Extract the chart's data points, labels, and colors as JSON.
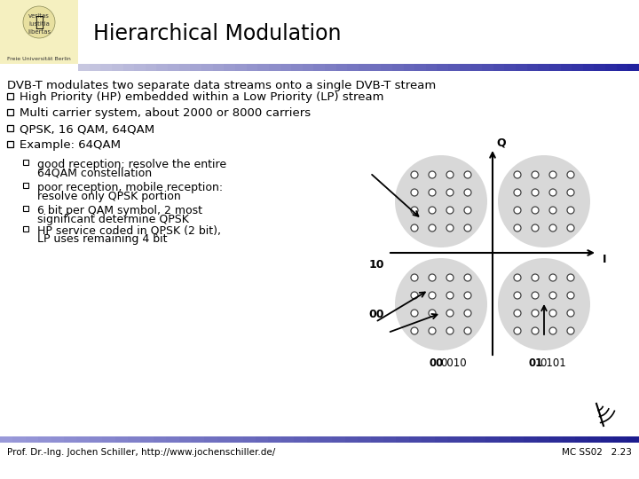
{
  "title_text": "Hierarchical Modulation",
  "bg_color": "#ffffff",
  "main_text": "DVB-T modulates two separate data streams onto a single DVB-T stream",
  "bullets": [
    "High Priority (HP) embedded within a Low Priority (LP) stream",
    "Multi carrier system, about 2000 or 8000 carriers",
    "QPSK, 16 QAM, 64QAM",
    "Example: 64QAM"
  ],
  "sub_bullets": [
    "good reception: resolve the entire\n64QAM constellation",
    "poor reception, mobile reception:\nresolve only QPSK portion",
    "6 bit per QAM symbol, 2 most\nsignificant determine QPSK",
    "HP service coded in QPSK (2 bit),\nLP uses remaining 4 bit"
  ],
  "footer_left": "Prof. Dr.-Ing. Jochen Schiller, http://www.jochenschiller.de/",
  "footer_right": "MC SS02   2.23",
  "axis_label_q": "Q",
  "axis_label_i": "I",
  "label_10": "10",
  "label_00": "00",
  "header_logo_bg": "#f5f0c0",
  "header_bar_left": "#c0c0e0",
  "header_bar_right": "#2020a0",
  "footer_bar_left": "#8888cc",
  "footer_bar_right": "#1a1a80",
  "circle_color": "#d8d8d8",
  "dot_face": "#ffffff",
  "dot_edge": "#444444"
}
